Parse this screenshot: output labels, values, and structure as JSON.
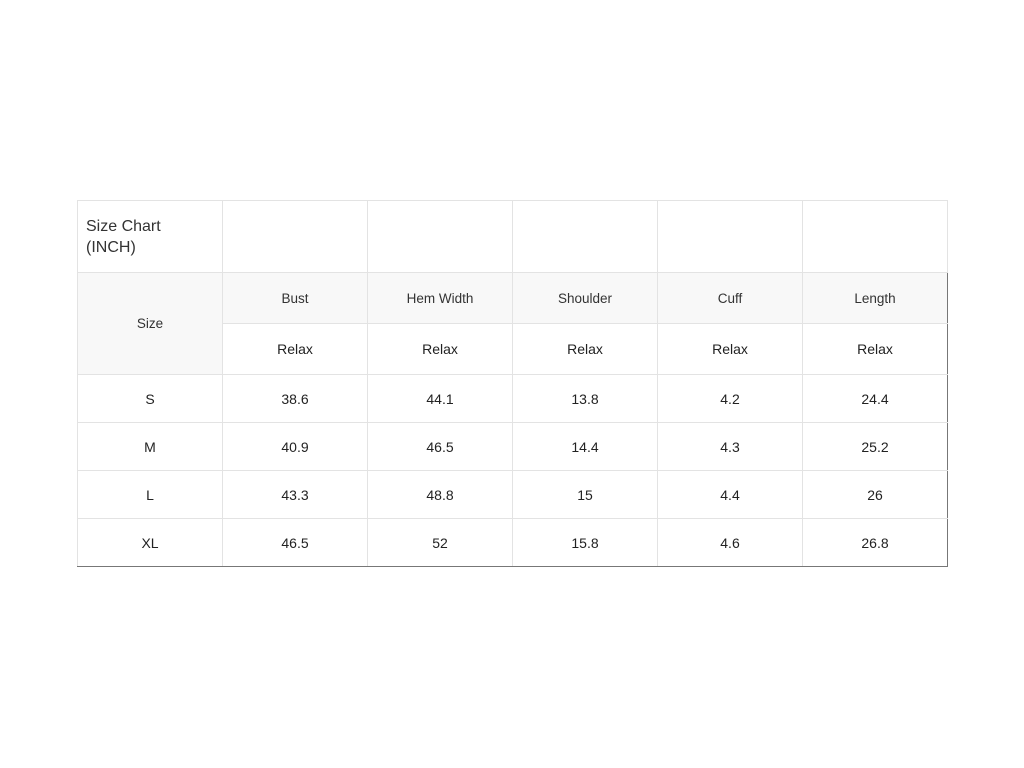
{
  "title_line1": "Size Chart",
  "title_line2": "(INCH)",
  "size_header": "Size",
  "columns": [
    {
      "name": "Bust",
      "sub": "Relax"
    },
    {
      "name": "Hem Width",
      "sub": "Relax"
    },
    {
      "name": "Shoulder",
      "sub": "Relax"
    },
    {
      "name": "Cuff",
      "sub": "Relax"
    },
    {
      "name": "Length",
      "sub": "Relax"
    }
  ],
  "rows": [
    {
      "size": "S",
      "values": [
        "38.6",
        "44.1",
        "13.8",
        "4.2",
        "24.4"
      ]
    },
    {
      "size": "M",
      "values": [
        "40.9",
        "46.5",
        "14.4",
        "4.3",
        "25.2"
      ]
    },
    {
      "size": "L",
      "values": [
        "43.3",
        "48.8",
        "15",
        "4.4",
        "26"
      ]
    },
    {
      "size": "XL",
      "values": [
        "46.5",
        "52",
        "15.8",
        "4.6",
        "26.8"
      ]
    }
  ]
}
